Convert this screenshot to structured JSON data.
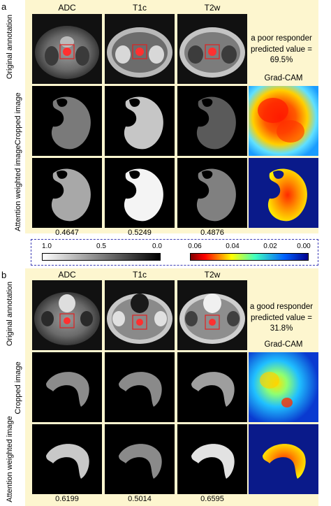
{
  "colors": {
    "panel_background": "#fdf6cf",
    "annotation_box": "#e02020",
    "colorbar_border": "#3b3bb5"
  },
  "colorbars": {
    "gray_ticks": [
      "1.0",
      "0.5",
      "0.0"
    ],
    "jet_ticks": [
      "0.06",
      "0.04",
      "0.02",
      "0.00"
    ]
  },
  "panels": [
    {
      "letter": "a",
      "columns": [
        "ADC",
        "T1c",
        "T2w"
      ],
      "row_labels": [
        "Original annotation",
        "Cropped image",
        "Attention weighted image"
      ],
      "responder_label": "a poor responder",
      "predicted_label": "predicted value = 69.5%",
      "gradcam_label": "Grad-CAM",
      "attention_values": [
        "0.4647",
        "0.5249",
        "0.4876"
      ]
    },
    {
      "letter": "b",
      "columns": [
        "ADC",
        "T1c",
        "T2w"
      ],
      "row_labels": [
        "Original annotation",
        "Cropped image",
        "Attention weighted image"
      ],
      "responder_label": "a good responder",
      "predicted_label": "predicted value = 31.8%",
      "gradcam_label": "Grad-CAM",
      "attention_values": [
        "0.6199",
        "0.5014",
        "0.6595"
      ]
    }
  ]
}
